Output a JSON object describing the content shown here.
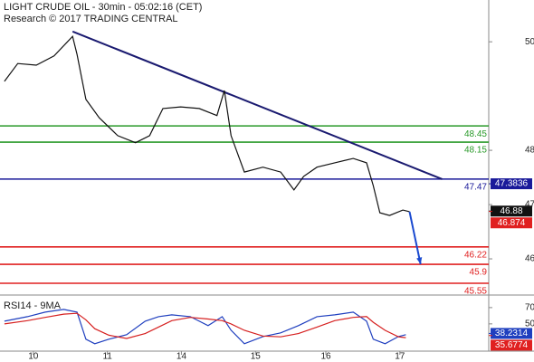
{
  "chart_data": [
    {
      "type": "line",
      "title": "LIGHT CRUDE OIL - 30min - 05:02:16 (CET)",
      "subtitle": "Research © 2017 TRADING CENTRAL",
      "xlim": [
        0,
        6.6
      ],
      "ylim": [
        45.35,
        50.77
      ],
      "yticks": [
        50,
        48,
        47,
        46
      ],
      "series": [
        {
          "color": "#111111",
          "x": [
            0.06,
            0.24,
            0.49,
            0.73,
            0.98,
            1.04,
            1.16,
            1.34,
            1.59,
            1.83,
            2.02,
            2.2,
            2.44,
            2.69,
            2.93,
            3.03,
            3.12,
            3.3,
            3.55,
            3.79,
            3.97,
            4.1,
            4.28,
            4.52,
            4.77,
            4.95,
            5.04,
            5.13,
            5.26,
            5.44,
            5.53
          ],
          "values": [
            49.27,
            49.6,
            49.57,
            49.74,
            50.1,
            49.77,
            48.94,
            48.6,
            48.27,
            48.14,
            48.27,
            48.77,
            48.8,
            48.77,
            48.64,
            49.1,
            48.27,
            47.6,
            47.69,
            47.6,
            47.27,
            47.52,
            47.69,
            47.77,
            47.85,
            47.77,
            47.35,
            46.85,
            46.8,
            46.9,
            46.87
          ]
        }
      ],
      "trendline": {
        "color": "#1a1a70",
        "x": [
          0.98,
          5.97
        ],
        "values": [
          50.19,
          47.47
        ]
      },
      "arrow": {
        "color": "#1a4ad0",
        "x": [
          5.53,
          5.68
        ],
        "values": [
          46.87,
          45.9
        ]
      },
      "levels": [
        {
          "value": 48.45,
          "color": "#2a9a2a"
        },
        {
          "value": 48.15,
          "color": "#2a9a2a"
        },
        {
          "value": 47.47,
          "color": "#1a1a9a"
        },
        {
          "value": 46.22,
          "color": "#e02020"
        },
        {
          "value": 45.9,
          "color": "#e02020"
        },
        {
          "value": 45.55,
          "color": "#e02020"
        }
      ],
      "markers": [
        {
          "value": 47.3836,
          "color": "#1a1a9a"
        },
        {
          "value": 46.88,
          "color": "#111111"
        },
        {
          "value": 46.874,
          "color": "#e02020"
        }
      ]
    },
    {
      "type": "line",
      "title": "RSI14 - 9MA",
      "xlim": [
        0,
        6.6
      ],
      "ylim": [
        12,
        81
      ],
      "yticks": [
        70,
        50
      ],
      "xticks": [
        {
          "value": 0.45,
          "label": "10"
        },
        {
          "value": 1.45,
          "label": "11"
        },
        {
          "value": 2.45,
          "label": "14"
        },
        {
          "value": 3.45,
          "label": "15"
        },
        {
          "value": 4.4,
          "label": "16"
        },
        {
          "value": 5.4,
          "label": "17"
        }
      ],
      "series": [
        {
          "color": "#1f3fbf",
          "x": [
            0.06,
            0.37,
            0.61,
            0.86,
            1.04,
            1.16,
            1.28,
            1.47,
            1.71,
            1.96,
            2.14,
            2.32,
            2.57,
            2.81,
            3.0,
            3.12,
            3.3,
            3.55,
            3.79,
            4.03,
            4.28,
            4.52,
            4.77,
            4.95,
            5.04,
            5.2,
            5.38,
            5.48
          ],
          "values": [
            53.3,
            58.9,
            64.4,
            67.8,
            64.4,
            31.1,
            25.6,
            31.1,
            36.7,
            53.3,
            58.9,
            61.1,
            58.9,
            47.8,
            58.9,
            42.2,
            25.6,
            34.4,
            38.9,
            47.8,
            58.9,
            61.1,
            64.4,
            53.3,
            31.1,
            25.6,
            34.4,
            36.7
          ]
        },
        {
          "color": "#d62020",
          "x": [
            0.06,
            0.37,
            0.61,
            0.86,
            1.04,
            1.16,
            1.28,
            1.47,
            1.71,
            1.96,
            2.14,
            2.32,
            2.57,
            2.81,
            3.0,
            3.12,
            3.3,
            3.55,
            3.79,
            4.03,
            4.28,
            4.52,
            4.77,
            4.95,
            5.04,
            5.2,
            5.38,
            5.48
          ],
          "values": [
            50,
            54,
            58,
            62,
            63,
            55,
            44,
            36,
            32,
            38,
            46,
            54,
            58,
            56,
            54,
            50,
            42,
            35,
            34,
            38,
            46,
            54,
            58,
            59,
            52,
            42,
            34,
            33
          ]
        }
      ],
      "markers": [
        {
          "value": 38.2314,
          "color": "#1f3fbf"
        },
        {
          "value": 35.6774,
          "color": "#e02020"
        }
      ]
    }
  ]
}
